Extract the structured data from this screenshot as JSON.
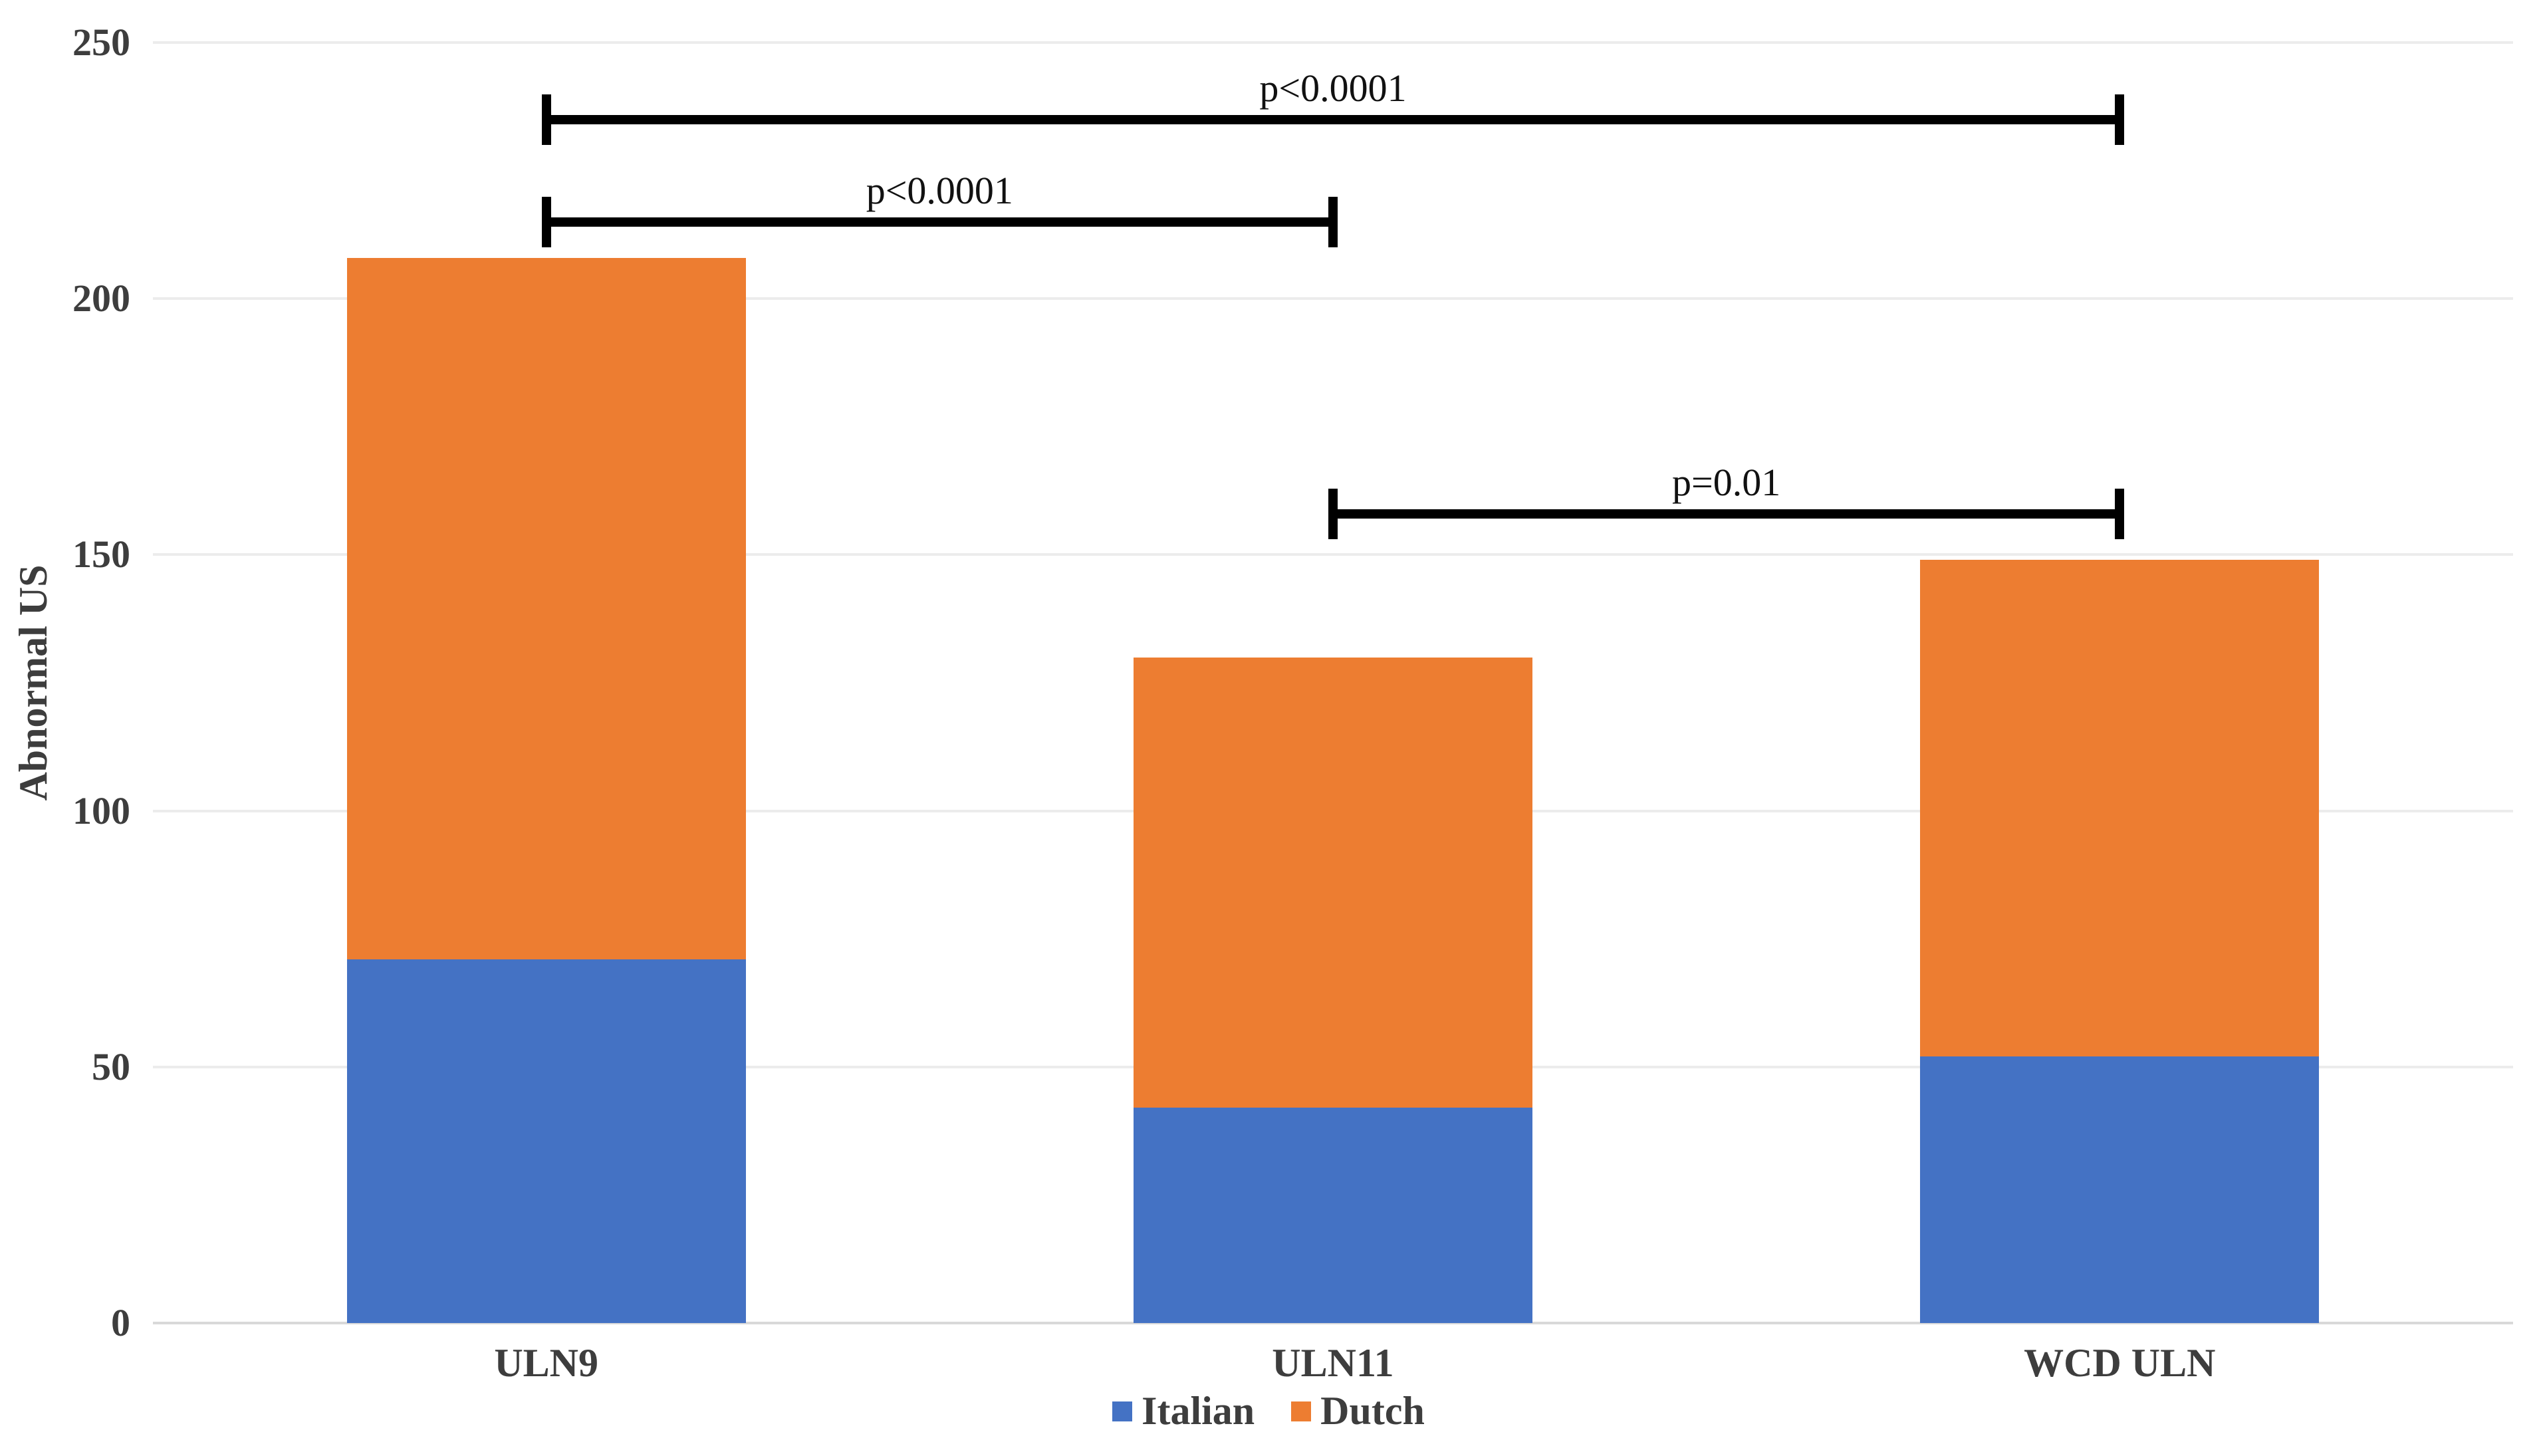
{
  "chart_data": {
    "type": "bar",
    "stacked": true,
    "title": "",
    "categories": [
      "ULN9",
      "ULN11",
      "WCD ULN"
    ],
    "series": [
      {
        "name": "Italian",
        "color": "#4472C4",
        "values": [
          71,
          42,
          52
        ]
      },
      {
        "name": "Dutch",
        "color": "#ED7D31",
        "values": [
          137,
          88,
          97
        ]
      }
    ],
    "stacked_totals": [
      208,
      130,
      149
    ],
    "xlabel": "",
    "ylabel": "Abnormal US",
    "ylim": [
      0,
      250
    ],
    "yticks": [
      0,
      50,
      100,
      150,
      200,
      250
    ],
    "grid": true,
    "gridline_color": "#ececec",
    "axis_line_color": "#d9d9d9",
    "text_color": "#3d3d3d",
    "bracket_color": "#000000",
    "legend_position": "bottom",
    "annotations": [
      {
        "type": "significance-bracket",
        "from": "ULN9",
        "to": "WCD ULN",
        "label": "p<0.0001",
        "level": 235
      },
      {
        "type": "significance-bracket",
        "from": "ULN9",
        "to": "ULN11",
        "label": "p<0.0001",
        "level": 215
      },
      {
        "type": "significance-bracket",
        "from": "ULN11",
        "to": "WCD ULN",
        "label": "p=0.01",
        "level": 158
      }
    ]
  }
}
